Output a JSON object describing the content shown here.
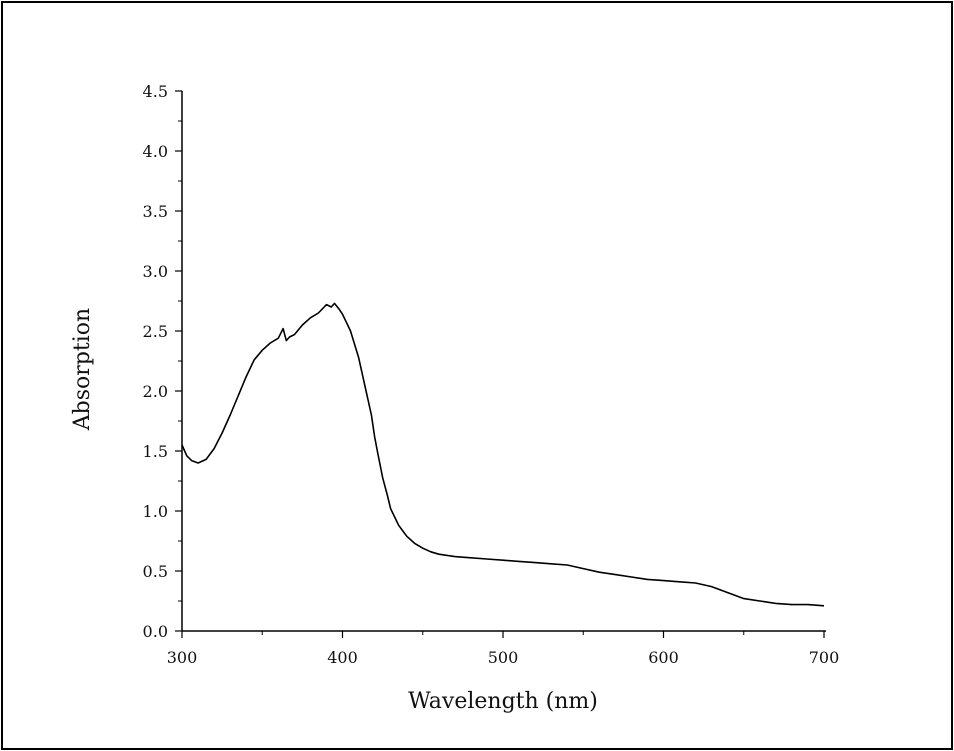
{
  "chart_data": {
    "type": "line",
    "title": "",
    "xlabel": "Wavelength (nm)",
    "ylabel": "Absorption",
    "xlim": [
      300,
      700
    ],
    "ylim": [
      0,
      4.5
    ],
    "x_ticks": [
      "300",
      "400",
      "500",
      "600",
      "700"
    ],
    "y_ticks": [
      "0.0",
      "0.5",
      "1.0",
      "1.5",
      "2.0",
      "2.5",
      "3.0",
      "3.5",
      "4.0",
      "4.5"
    ],
    "grid": false,
    "legend": "none",
    "line_color": "#000000",
    "series": [
      {
        "x": [
          300,
          303,
          306,
          310,
          315,
          320,
          325,
          330,
          335,
          340,
          345,
          350,
          355,
          360,
          363,
          365,
          367,
          370,
          375,
          380,
          385,
          390,
          393,
          395,
          398,
          400,
          405,
          410,
          415,
          418,
          420,
          422,
          425,
          428,
          430,
          435,
          440,
          445,
          450,
          455,
          460,
          470,
          480,
          490,
          500,
          510,
          520,
          530,
          540,
          550,
          560,
          570,
          580,
          590,
          600,
          610,
          620,
          630,
          640,
          650,
          660,
          670,
          680,
          690,
          700
        ],
        "y": [
          1.55,
          1.46,
          1.42,
          1.4,
          1.43,
          1.52,
          1.65,
          1.8,
          1.96,
          2.12,
          2.26,
          2.34,
          2.4,
          2.44,
          2.52,
          2.42,
          2.45,
          2.47,
          2.55,
          2.61,
          2.65,
          2.72,
          2.7,
          2.73,
          2.68,
          2.64,
          2.5,
          2.28,
          1.98,
          1.8,
          1.62,
          1.48,
          1.28,
          1.13,
          1.02,
          0.88,
          0.79,
          0.73,
          0.69,
          0.66,
          0.64,
          0.62,
          0.61,
          0.6,
          0.59,
          0.58,
          0.57,
          0.56,
          0.55,
          0.52,
          0.49,
          0.47,
          0.45,
          0.43,
          0.42,
          0.41,
          0.4,
          0.37,
          0.32,
          0.27,
          0.25,
          0.23,
          0.22,
          0.22,
          0.21
        ]
      }
    ]
  }
}
